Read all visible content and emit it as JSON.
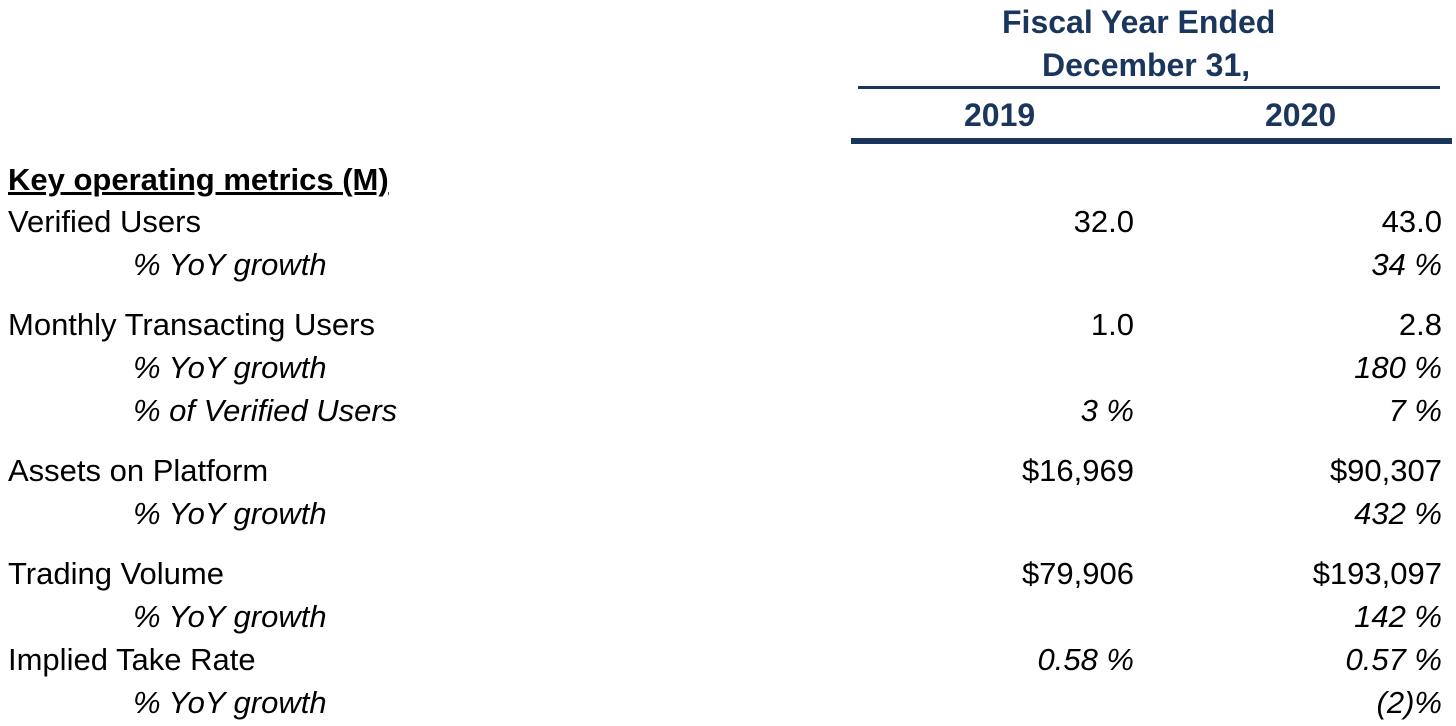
{
  "header": {
    "line1": "Fiscal Year Ended",
    "line2": "December 31,",
    "years": [
      "2019",
      "2020"
    ],
    "color": "#1b365d"
  },
  "section_title": "Key operating metrics (M)",
  "rows": [
    {
      "label": "Verified Users",
      "v2019": "32.0",
      "v2020": "43.0"
    },
    {
      "label": "% YoY growth",
      "v2019": "",
      "v2020": "34 %"
    },
    {
      "label": "Monthly Transacting Users",
      "v2019": "1.0",
      "v2020": "2.8"
    },
    {
      "label": "% YoY growth",
      "v2019": "",
      "v2020": "180 %"
    },
    {
      "label": "% of Verified Users",
      "v2019": "3 %",
      "v2020": "7 %"
    },
    {
      "label": "Assets on Platform",
      "v2019": "$16,969",
      "v2020": "$90,307"
    },
    {
      "label": "% YoY growth",
      "v2019": "",
      "v2020": "432 %"
    },
    {
      "label": "Trading Volume",
      "v2019": "$79,906",
      "v2020": "$193,097"
    },
    {
      "label": "% YoY growth",
      "v2019": "",
      "v2020": "142 %"
    },
    {
      "label": "Implied Take Rate",
      "v2019": "0.58 %",
      "v2020": "0.57 %"
    },
    {
      "label": "% YoY growth",
      "v2019": "",
      "v2020": "(2)%"
    }
  ]
}
